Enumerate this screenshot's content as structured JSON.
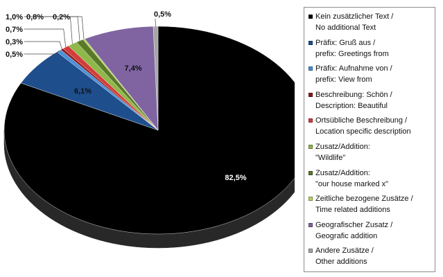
{
  "chart_data": {
    "type": "pie",
    "style": "3d",
    "start_angle_deg": 0,
    "direction": "clockwise",
    "slices": [
      {
        "label_line1": "Kein zusätzlicher Text /",
        "label_line2": "No additional Text",
        "value": 82.5,
        "value_label": "82,5%",
        "color": "#000000"
      },
      {
        "label_line1": "Präfix: Gruß aus /",
        "label_line2": "prefix: Greetings from",
        "value": 6.1,
        "value_label": "6,1%",
        "color": "#1f4e8c"
      },
      {
        "label_line1": "Präfix: Aufnahme von /",
        "label_line2": "prefix: View from",
        "value": 0.5,
        "value_label": "0,5%",
        "color": "#4a90d9"
      },
      {
        "label_line1": "Beschreibung: Schön /",
        "label_line2": "Description: Beautiful",
        "value": 0.3,
        "value_label": "0,3%",
        "color": "#8b1a1a"
      },
      {
        "label_line1": "Ortsübliche Beschreibung /",
        "label_line2": "Location specific description",
        "value": 0.7,
        "value_label": "0,7%",
        "color": "#d43c3c"
      },
      {
        "label_line1": "Zusatz/Addition:",
        "label_line2": "\"Wildlife\"",
        "value": 1.0,
        "value_label": "1,0%",
        "color": "#8fb84a"
      },
      {
        "label_line1": "Zusatz/Addition:",
        "label_line2": "\"our house marked x\"",
        "value": 0.8,
        "value_label": "0,8%",
        "color": "#5a7a28"
      },
      {
        "label_line1": "Zeitliche bezogene Zusätze /",
        "label_line2": "Time related additions",
        "value": 0.2,
        "value_label": "0,2%",
        "color": "#b7d36a"
      },
      {
        "label_line1": "Geografischer Zusatz /",
        "label_line2": "Geografic addition",
        "value": 7.4,
        "value_label": "7,4%",
        "color": "#8064a2"
      },
      {
        "label_line1": "Andere Zusätze /",
        "label_line2": "Other additions",
        "value": 0.5,
        "value_label": "0,5%",
        "color": "#a6a6a6"
      }
    ],
    "legend_position": "right"
  }
}
